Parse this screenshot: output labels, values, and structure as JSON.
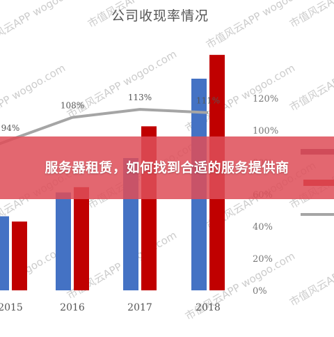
{
  "banner": {
    "text": "服务器租赁，如何找到合适的服务提供商"
  },
  "watermark": {
    "text": "市值风云APP wogoo.com"
  },
  "chart_data": {
    "type": "bar",
    "title": "公司收现率情况",
    "categories": [
      "2015",
      "2016",
      "2017",
      "2018"
    ],
    "series": [
      {
        "type": "bar",
        "axis": "left",
        "color": "#4472c4",
        "values": [
          2.8,
          3.7,
          5.0,
          8.0
        ]
      },
      {
        "type": "bar",
        "axis": "left",
        "color": "#c00000",
        "values": [
          2.6,
          3.9,
          6.2,
          8.9
        ]
      },
      {
        "type": "line",
        "axis": "right",
        "color": "#a5a5a5",
        "values": [
          94,
          108,
          113,
          111
        ],
        "labels": [
          "94%",
          "108%",
          "113%",
          "111%"
        ]
      }
    ],
    "right_axis": {
      "ticks": [
        "0%",
        "20%",
        "40%",
        "60%",
        "80%",
        "100%",
        "120%"
      ],
      "range": [
        0,
        120
      ]
    },
    "legend_placement": "right",
    "grid": false
  }
}
